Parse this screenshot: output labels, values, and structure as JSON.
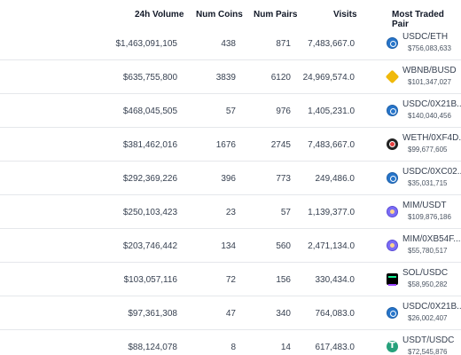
{
  "header": {
    "volume": "24h Volume",
    "coins": "Num Coins",
    "pairs": "Num Pairs",
    "visits": "Visits",
    "pair": "Most Traded Pair"
  },
  "rows": [
    {
      "volume": "$1,463,091,105",
      "coins": "438",
      "pairs": "871",
      "visits": "7,483,667.0",
      "pair": "USDC/ETH",
      "price": "$756,083,633",
      "icon": "usdc-icon"
    },
    {
      "volume": "$635,755,800",
      "coins": "3839",
      "pairs": "6120",
      "visits": "24,969,574.0",
      "pair": "WBNB/BUSD",
      "price": "$101,347,027",
      "icon": "bnb-icon"
    },
    {
      "volume": "$468,045,505",
      "coins": "57",
      "pairs": "976",
      "visits": "1,405,231.0",
      "pair": "USDC/0X21B...",
      "price": "$140,040,456",
      "icon": "usdc-icon"
    },
    {
      "volume": "$381,462,016",
      "coins": "1676",
      "pairs": "2745",
      "visits": "7,483,667.0",
      "pair": "WETH/0XF4D...",
      "price": "$99,677,605",
      "icon": "weth-icon"
    },
    {
      "volume": "$292,369,226",
      "coins": "396",
      "pairs": "773",
      "visits": "249,486.0",
      "pair": "USDC/0XC02...",
      "price": "$35,031,715",
      "icon": "usdc-icon"
    },
    {
      "volume": "$250,103,423",
      "coins": "23",
      "pairs": "57",
      "visits": "1,139,377.0",
      "pair": "MIM/USDT",
      "price": "$109,876,186",
      "icon": "mim-icon"
    },
    {
      "volume": "$203,746,442",
      "coins": "134",
      "pairs": "560",
      "visits": "2,471,134.0",
      "pair": "MIM/0XB54F...",
      "price": "$55,780,517",
      "icon": "mim-icon"
    },
    {
      "volume": "$103,057,116",
      "coins": "72",
      "pairs": "156",
      "visits": "330,434.0",
      "pair": "SOL/USDC",
      "price": "$58,950,282",
      "icon": "sol-icon"
    },
    {
      "volume": "$97,361,308",
      "coins": "47",
      "pairs": "340",
      "visits": "764,083.0",
      "pair": "USDC/0X21B...",
      "price": "$26,002,407",
      "icon": "usdc-icon"
    },
    {
      "volume": "$88,124,078",
      "coins": "8",
      "pairs": "14",
      "visits": "617,483.0",
      "pair": "USDT/USDC",
      "price": "$72,545,876",
      "icon": "usdt-icon"
    }
  ]
}
